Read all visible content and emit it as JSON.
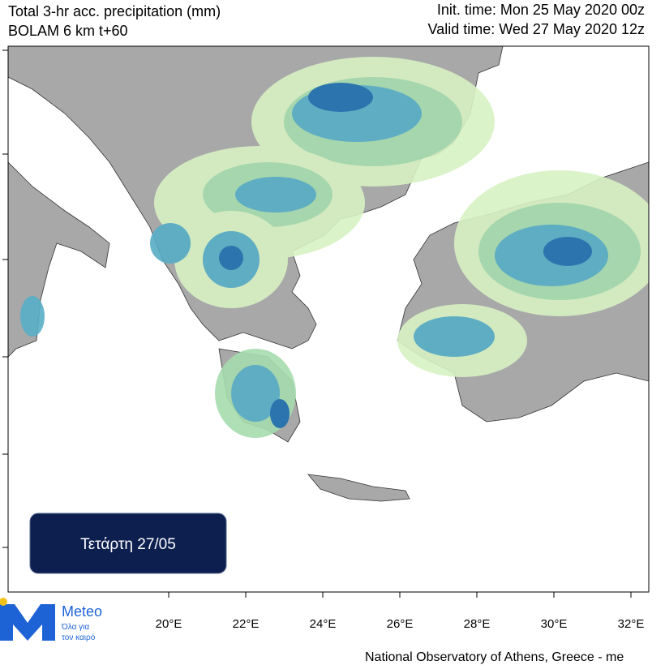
{
  "header": {
    "title_line1": "Total 3-hr acc. precipitation (mm)",
    "title_line2": "BOLAM 6 km t+60",
    "init_time": "Init. time: Mon 25 May 2020 00z",
    "valid_time": "Valid time: Wed 27 May 2020 12z"
  },
  "map": {
    "lon_labels": [
      "20°E",
      "22°E",
      "24°E",
      "26°E",
      "28°E",
      "30°E",
      "32°E"
    ]
  },
  "badge": {
    "label": "Τετάρτη 27/05"
  },
  "logo": {
    "name": "Meteo",
    "tagline_line1": "Όλα για",
    "tagline_line2": "τον καιρό"
  },
  "footer": {
    "credit": "National Observatory of Athens, Greece - me"
  }
}
